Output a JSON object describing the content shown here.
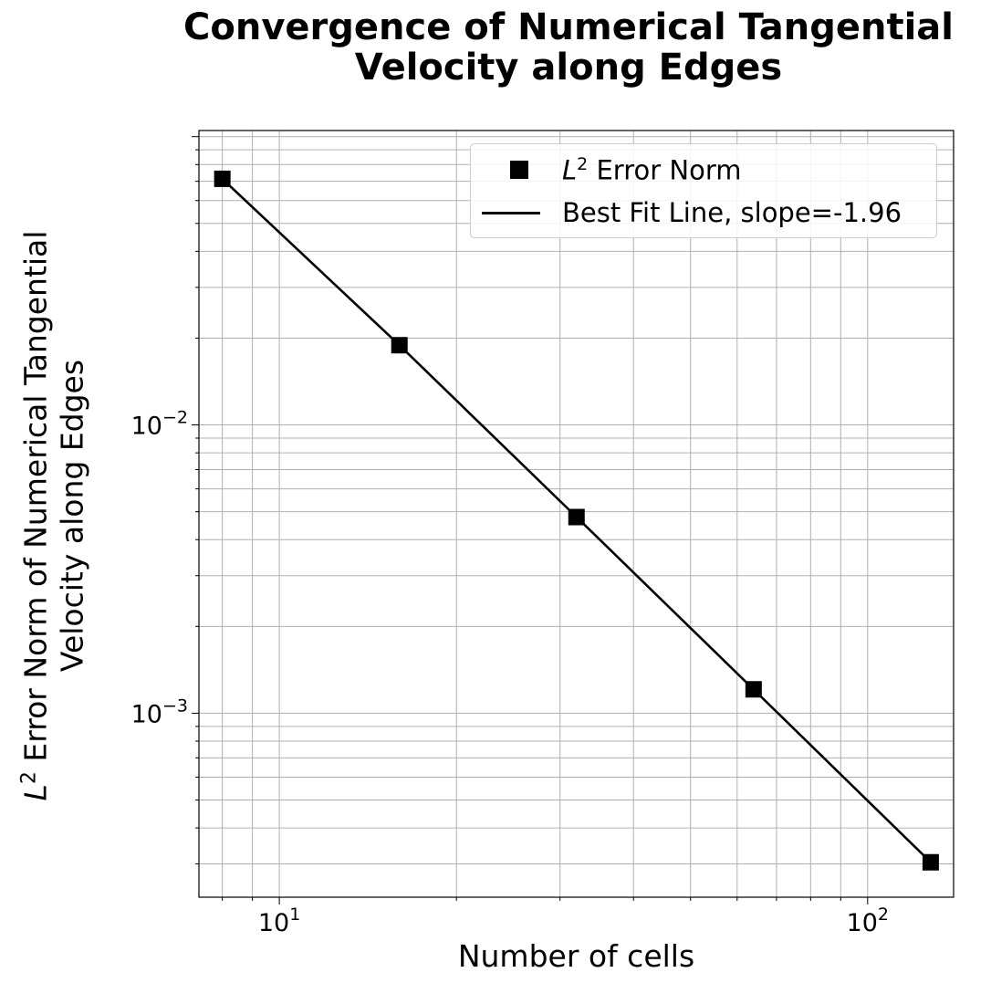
{
  "chart_data": {
    "type": "line",
    "title_line1": "Convergence of Numerical Tangential",
    "title_line2": "Velocity along Edges",
    "xlabel": "Number of cells",
    "ylabel_line1": "Error Norm of Numerical Tangential",
    "ylabel_line2": "Velocity along Edges",
    "ylabel_prefix": "L",
    "ylabel_sup": "2",
    "xscale": "log",
    "yscale": "log",
    "xlim": [
      7.3,
      140
    ],
    "ylim": [
      0.00023,
      0.105
    ],
    "grid": true,
    "legend_placement": "upper right",
    "x_ticks": [
      {
        "base": "10",
        "exp": "1",
        "value": 10
      },
      {
        "base": "10",
        "exp": "2",
        "value": 100
      }
    ],
    "y_ticks": [
      {
        "base": "10",
        "exp": "−2",
        "value": 0.01
      },
      {
        "base": "10",
        "exp": "−3",
        "value": 0.001
      }
    ],
    "series": [
      {
        "name_prefix": "L",
        "name_sup": "2",
        "name_suffix": " Error Norm",
        "marker": "square",
        "x": [
          8,
          16,
          32,
          64,
          128
        ],
        "y": [
          0.0714,
          0.0189,
          0.00479,
          0.00121,
          0.000304
        ]
      },
      {
        "name": "Best Fit Line, slope=-1.96",
        "marker": "none",
        "x": [
          8,
          16,
          32,
          64,
          128
        ],
        "y": [
          0.0714,
          0.0189,
          0.00479,
          0.00121,
          0.000304
        ]
      }
    ],
    "colors": {
      "series": "#000000",
      "grid": "#b0b0b0"
    }
  }
}
